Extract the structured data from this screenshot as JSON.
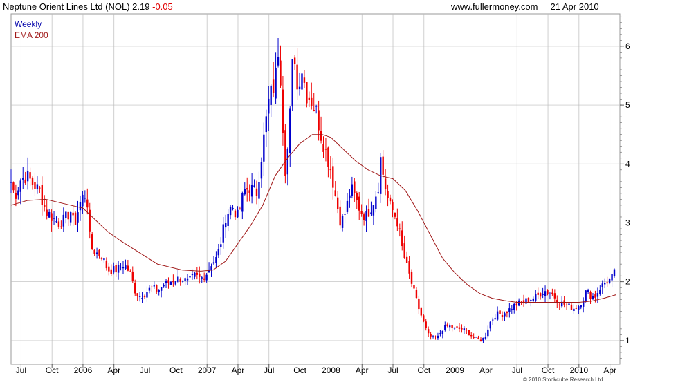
{
  "header": {
    "instrument": "Neptune Orient Lines Ltd (NOL)",
    "last": "2.19",
    "change": "-0.05",
    "site": "www.fullermoney.com",
    "date": "21 Apr 2010"
  },
  "legend": {
    "period": "Weekly",
    "ema": "EMA 200"
  },
  "copyright": "© 2010 Stockcube Research Ltd",
  "colors": {
    "up": "#0000cc",
    "down": "#ee0000",
    "ema": "#a01818",
    "grid": "#bbbbbb"
  },
  "chart_data": {
    "type": "candlestick",
    "interval": "weekly",
    "grid": true,
    "ylim": [
      0.6,
      6.55
    ],
    "xlim": [
      2005.42,
      2010.33
    ],
    "y_ticks": [
      "1",
      "2",
      "3",
      "4",
      "5",
      "6"
    ],
    "x_ticks": [
      {
        "label": "Jul",
        "t": 2005.5
      },
      {
        "label": "Oct",
        "t": 2005.75
      },
      {
        "label": "2006",
        "t": 2006.0
      },
      {
        "label": "Apr",
        "t": 2006.25
      },
      {
        "label": "Jul",
        "t": 2006.5
      },
      {
        "label": "Oct",
        "t": 2006.75
      },
      {
        "label": "2007",
        "t": 2007.0
      },
      {
        "label": "Apr",
        "t": 2007.25
      },
      {
        "label": "Jul",
        "t": 2007.5
      },
      {
        "label": "Oct",
        "t": 2007.75
      },
      {
        "label": "2008",
        "t": 2008.0
      },
      {
        "label": "Apr",
        "t": 2008.25
      },
      {
        "label": "Jul",
        "t": 2008.5
      },
      {
        "label": "Oct",
        "t": 2008.75
      },
      {
        "label": "2009",
        "t": 2009.0
      },
      {
        "label": "Apr",
        "t": 2009.25
      },
      {
        "label": "Jul",
        "t": 2009.5
      },
      {
        "label": "Oct",
        "t": 2009.75
      },
      {
        "label": "2010",
        "t": 2010.0
      },
      {
        "label": "Apr",
        "t": 2010.25
      }
    ],
    "price_points": [
      [
        2005.42,
        3.7
      ],
      [
        2005.45,
        3.45
      ],
      [
        2005.5,
        3.75
      ],
      [
        2005.55,
        3.8
      ],
      [
        2005.6,
        3.65
      ],
      [
        2005.65,
        3.55
      ],
      [
        2005.7,
        3.2
      ],
      [
        2005.75,
        3.1
      ],
      [
        2005.8,
        3.0
      ],
      [
        2005.85,
        3.05
      ],
      [
        2005.9,
        3.2
      ],
      [
        2005.93,
        2.95
      ],
      [
        2005.97,
        3.3
      ],
      [
        2006.0,
        3.45
      ],
      [
        2006.03,
        3.5
      ],
      [
        2006.06,
        2.6
      ],
      [
        2006.1,
        2.5
      ],
      [
        2006.15,
        2.45
      ],
      [
        2006.2,
        2.2
      ],
      [
        2006.27,
        2.2
      ],
      [
        2006.33,
        2.3
      ],
      [
        2006.38,
        2.15
      ],
      [
        2006.42,
        1.85
      ],
      [
        2006.45,
        1.75
      ],
      [
        2006.5,
        1.8
      ],
      [
        2006.55,
        1.9
      ],
      [
        2006.6,
        1.85
      ],
      [
        2006.65,
        1.95
      ],
      [
        2006.7,
        2.0
      ],
      [
        2006.75,
        2.05
      ],
      [
        2006.8,
        2.05
      ],
      [
        2006.85,
        2.0
      ],
      [
        2006.9,
        2.1
      ],
      [
        2006.95,
        2.05
      ],
      [
        2007.0,
        2.15
      ],
      [
        2007.03,
        2.3
      ],
      [
        2007.08,
        2.4
      ],
      [
        2007.12,
        2.75
      ],
      [
        2007.15,
        3.1
      ],
      [
        2007.2,
        3.3
      ],
      [
        2007.25,
        3.1
      ],
      [
        2007.3,
        3.55
      ],
      [
        2007.35,
        3.6
      ],
      [
        2007.4,
        3.5
      ],
      [
        2007.45,
        4.3
      ],
      [
        2007.5,
        5.1
      ],
      [
        2007.55,
        5.4
      ],
      [
        2007.58,
        6.1
      ],
      [
        2007.6,
        5.2
      ],
      [
        2007.63,
        3.9
      ],
      [
        2007.66,
        4.4
      ],
      [
        2007.7,
        6.1
      ],
      [
        2007.73,
        5.2
      ],
      [
        2007.76,
        5.7
      ],
      [
        2007.8,
        5.2
      ],
      [
        2007.84,
        5.1
      ],
      [
        2007.88,
        4.9
      ],
      [
        2007.92,
        4.5
      ],
      [
        2007.96,
        4.2
      ],
      [
        2008.0,
        3.9
      ],
      [
        2008.04,
        3.4
      ],
      [
        2008.08,
        3.0
      ],
      [
        2008.12,
        3.2
      ],
      [
        2008.16,
        3.6
      ],
      [
        2008.2,
        3.4
      ],
      [
        2008.24,
        3.2
      ],
      [
        2008.28,
        3.1
      ],
      [
        2008.33,
        3.3
      ],
      [
        2008.38,
        3.6
      ],
      [
        2008.4,
        4.1
      ],
      [
        2008.43,
        3.7
      ],
      [
        2008.47,
        3.3
      ],
      [
        2008.5,
        3.2
      ],
      [
        2008.54,
        3.0
      ],
      [
        2008.58,
        2.5
      ],
      [
        2008.62,
        2.2
      ],
      [
        2008.66,
        1.9
      ],
      [
        2008.7,
        1.6
      ],
      [
        2008.74,
        1.35
      ],
      [
        2008.78,
        1.1
      ],
      [
        2008.82,
        1.05
      ],
      [
        2008.86,
        1.05
      ],
      [
        2008.9,
        1.2
      ],
      [
        2008.95,
        1.25
      ],
      [
        2009.0,
        1.2
      ],
      [
        2009.05,
        1.2
      ],
      [
        2009.1,
        1.15
      ],
      [
        2009.15,
        1.05
      ],
      [
        2009.2,
        1.0
      ],
      [
        2009.24,
        1.05
      ],
      [
        2009.28,
        1.3
      ],
      [
        2009.33,
        1.45
      ],
      [
        2009.38,
        1.45
      ],
      [
        2009.42,
        1.5
      ],
      [
        2009.48,
        1.6
      ],
      [
        2009.53,
        1.65
      ],
      [
        2009.6,
        1.7
      ],
      [
        2009.66,
        1.75
      ],
      [
        2009.72,
        1.85
      ],
      [
        2009.78,
        1.8
      ],
      [
        2009.84,
        1.65
      ],
      [
        2009.9,
        1.6
      ],
      [
        2009.96,
        1.55
      ],
      [
        2010.0,
        1.6
      ],
      [
        2010.03,
        1.7
      ],
      [
        2010.06,
        1.85
      ],
      [
        2010.1,
        1.75
      ],
      [
        2010.13,
        1.75
      ],
      [
        2010.17,
        1.9
      ],
      [
        2010.22,
        2.0
      ],
      [
        2010.26,
        2.05
      ],
      [
        2010.3,
        2.2
      ]
    ],
    "ema_points": [
      [
        2005.42,
        3.3
      ],
      [
        2005.55,
        3.38
      ],
      [
        2005.7,
        3.4
      ],
      [
        2005.8,
        3.35
      ],
      [
        2006.0,
        3.25
      ],
      [
        2006.1,
        3.05
      ],
      [
        2006.2,
        2.85
      ],
      [
        2006.3,
        2.7
      ],
      [
        2006.45,
        2.5
      ],
      [
        2006.6,
        2.3
      ],
      [
        2006.8,
        2.2
      ],
      [
        2006.95,
        2.18
      ],
      [
        2007.05,
        2.2
      ],
      [
        2007.15,
        2.35
      ],
      [
        2007.25,
        2.65
      ],
      [
        2007.35,
        2.95
      ],
      [
        2007.45,
        3.3
      ],
      [
        2007.55,
        3.8
      ],
      [
        2007.65,
        4.1
      ],
      [
        2007.75,
        4.35
      ],
      [
        2007.85,
        4.5
      ],
      [
        2007.93,
        4.5
      ],
      [
        2008.0,
        4.45
      ],
      [
        2008.1,
        4.25
      ],
      [
        2008.2,
        4.05
      ],
      [
        2008.3,
        3.9
      ],
      [
        2008.4,
        3.8
      ],
      [
        2008.5,
        3.75
      ],
      [
        2008.6,
        3.55
      ],
      [
        2008.7,
        3.2
      ],
      [
        2008.8,
        2.8
      ],
      [
        2008.9,
        2.4
      ],
      [
        2009.0,
        2.15
      ],
      [
        2009.1,
        1.95
      ],
      [
        2009.2,
        1.8
      ],
      [
        2009.3,
        1.72
      ],
      [
        2009.4,
        1.68
      ],
      [
        2009.5,
        1.65
      ],
      [
        2009.6,
        1.65
      ],
      [
        2009.75,
        1.65
      ],
      [
        2009.9,
        1.65
      ],
      [
        2010.0,
        1.65
      ],
      [
        2010.1,
        1.67
      ],
      [
        2010.2,
        1.72
      ],
      [
        2010.3,
        1.78
      ]
    ]
  }
}
